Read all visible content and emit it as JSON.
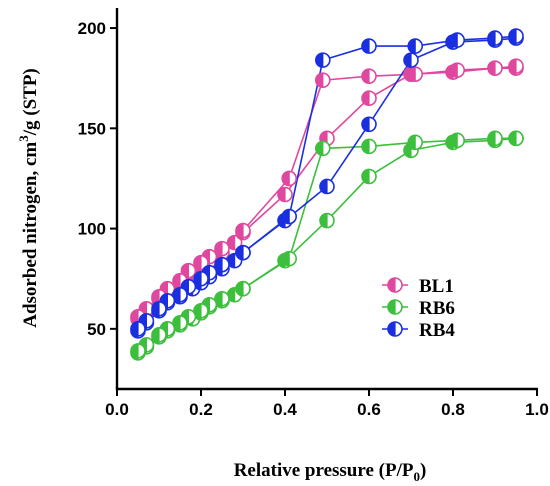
{
  "chart_data": {
    "type": "scatter",
    "title": "",
    "xlabel_main": "Relative pressure (P/P",
    "xlabel_sub": "0",
    "xlabel_end": ")",
    "ylabel_main": "Adsorbed nitrogen, cm",
    "ylabel_sup": "3",
    "ylabel_end": "/g (STP)",
    "xlim": [
      0.0,
      1.0
    ],
    "ylim": [
      20,
      210
    ],
    "xticks": [
      "0.0",
      "0.2",
      "0.4",
      "0.6",
      "0.8",
      "1.0"
    ],
    "xtick_values": [
      0.0,
      0.2,
      0.4,
      0.6,
      0.8,
      1.0
    ],
    "yticks": [
      "50",
      "100",
      "150",
      "200"
    ],
    "ytick_values": [
      50,
      100,
      150,
      200
    ],
    "legend_position": "center-right",
    "series": [
      {
        "name": "BL1",
        "color": "#e0479e",
        "adsorption": [
          [
            0.05,
            55
          ],
          [
            0.07,
            59
          ],
          [
            0.1,
            65
          ],
          [
            0.12,
            69
          ],
          [
            0.15,
            72
          ],
          [
            0.18,
            77
          ],
          [
            0.2,
            81
          ],
          [
            0.22,
            84
          ],
          [
            0.25,
            88
          ],
          [
            0.28,
            93
          ],
          [
            0.3,
            98
          ],
          [
            0.4,
            117
          ],
          [
            0.5,
            145
          ],
          [
            0.6,
            165
          ],
          [
            0.7,
            177
          ],
          [
            0.8,
            178
          ],
          [
            0.9,
            180
          ],
          [
            0.95,
            180
          ]
        ],
        "desorption": [
          [
            0.95,
            181
          ],
          [
            0.9,
            180
          ],
          [
            0.81,
            179
          ],
          [
            0.71,
            177
          ],
          [
            0.6,
            176
          ],
          [
            0.49,
            174
          ],
          [
            0.41,
            125
          ],
          [
            0.3,
            99
          ],
          [
            0.25,
            90
          ],
          [
            0.22,
            86
          ],
          [
            0.2,
            83
          ],
          [
            0.17,
            79
          ],
          [
            0.15,
            74
          ],
          [
            0.12,
            70
          ],
          [
            0.1,
            66
          ],
          [
            0.07,
            60
          ],
          [
            0.05,
            56
          ]
        ]
      },
      {
        "name": "RB6",
        "color": "#3cbf3c",
        "adsorption": [
          [
            0.05,
            38
          ],
          [
            0.07,
            41
          ],
          [
            0.1,
            46
          ],
          [
            0.12,
            49
          ],
          [
            0.15,
            52
          ],
          [
            0.18,
            55
          ],
          [
            0.2,
            58
          ],
          [
            0.22,
            61
          ],
          [
            0.25,
            64
          ],
          [
            0.28,
            67
          ],
          [
            0.3,
            70
          ],
          [
            0.4,
            84
          ],
          [
            0.5,
            104
          ],
          [
            0.6,
            126
          ],
          [
            0.7,
            139
          ],
          [
            0.8,
            143
          ],
          [
            0.9,
            144
          ],
          [
            0.95,
            145
          ]
        ],
        "desorption": [
          [
            0.95,
            145
          ],
          [
            0.9,
            145
          ],
          [
            0.81,
            144
          ],
          [
            0.71,
            143
          ],
          [
            0.6,
            141
          ],
          [
            0.49,
            140
          ],
          [
            0.41,
            85
          ],
          [
            0.3,
            70
          ],
          [
            0.25,
            65
          ],
          [
            0.22,
            62
          ],
          [
            0.2,
            59
          ],
          [
            0.17,
            56
          ],
          [
            0.15,
            53
          ],
          [
            0.12,
            50
          ],
          [
            0.1,
            47
          ],
          [
            0.07,
            42
          ],
          [
            0.05,
            39
          ]
        ]
      },
      {
        "name": "RB4",
        "color": "#1a2fe0",
        "adsorption": [
          [
            0.05,
            49
          ],
          [
            0.07,
            53
          ],
          [
            0.1,
            59
          ],
          [
            0.12,
            63
          ],
          [
            0.15,
            66
          ],
          [
            0.18,
            70
          ],
          [
            0.2,
            73
          ],
          [
            0.22,
            76
          ],
          [
            0.25,
            80
          ],
          [
            0.28,
            84
          ],
          [
            0.3,
            88
          ],
          [
            0.4,
            104
          ],
          [
            0.5,
            121
          ],
          [
            0.6,
            152
          ],
          [
            0.7,
            184
          ],
          [
            0.8,
            193
          ],
          [
            0.9,
            194
          ],
          [
            0.95,
            195
          ]
        ],
        "desorption": [
          [
            0.95,
            196
          ],
          [
            0.9,
            195
          ],
          [
            0.81,
            194
          ],
          [
            0.71,
            191
          ],
          [
            0.6,
            191
          ],
          [
            0.49,
            184
          ],
          [
            0.41,
            106
          ],
          [
            0.3,
            88
          ],
          [
            0.25,
            82
          ],
          [
            0.22,
            78
          ],
          [
            0.2,
            75
          ],
          [
            0.17,
            71
          ],
          [
            0.15,
            67
          ],
          [
            0.12,
            64
          ],
          [
            0.1,
            60
          ],
          [
            0.07,
            54
          ],
          [
            0.05,
            50
          ]
        ]
      }
    ]
  }
}
